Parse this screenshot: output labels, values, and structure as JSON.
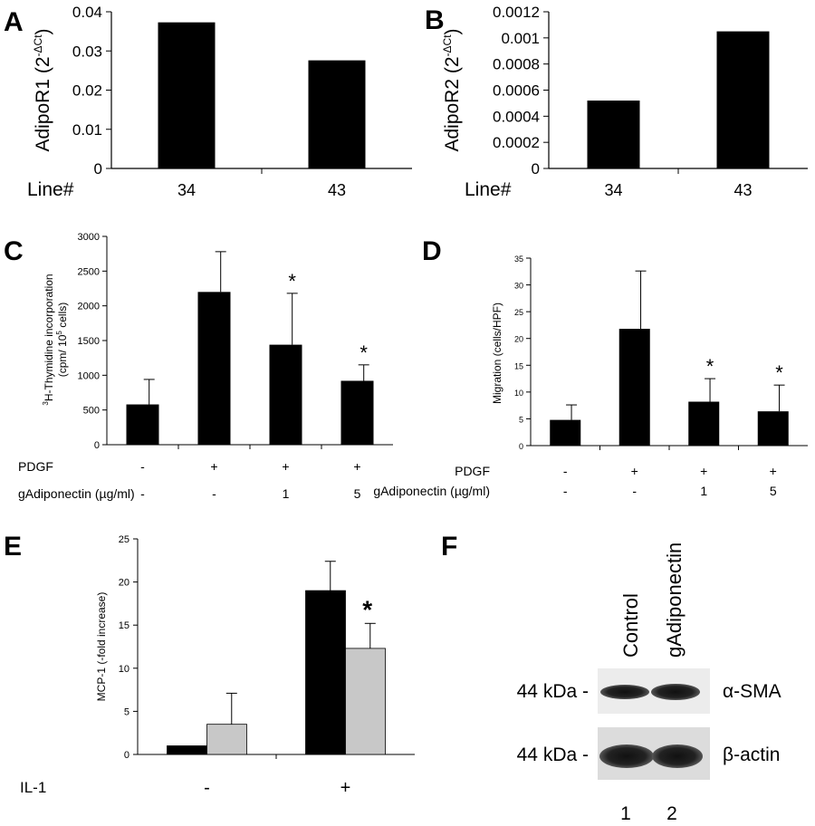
{
  "figure": {
    "panel_letters": [
      "A",
      "B",
      "C",
      "D",
      "E",
      "F"
    ]
  },
  "chart_data": [
    {
      "panel": "A",
      "type": "bar",
      "categories": [
        "34",
        "43"
      ],
      "values": [
        0.0373,
        0.0276
      ],
      "ylabel": "AdipoR1 (2",
      "ylabel_sup": "-ΔCt",
      "ylabel_close": ")",
      "xlabel": "Line#",
      "ylim": [
        0,
        0.04
      ],
      "yticks": [
        0,
        0.01,
        0.02,
        0.03,
        0.04
      ],
      "ytick_labels": [
        "0",
        "0.01",
        "0.02",
        "0.03",
        "0.04"
      ],
      "grid": false,
      "bar_color": "#000000"
    },
    {
      "panel": "B",
      "type": "bar",
      "categories": [
        "34",
        "43"
      ],
      "values": [
        0.00052,
        0.00105
      ],
      "ylabel": "AdipoR2 (2",
      "ylabel_sup": "-ΔCt",
      "ylabel_close": ")",
      "xlabel": "Line#",
      "ylim": [
        0,
        0.0012
      ],
      "yticks": [
        0,
        0.0002,
        0.0004,
        0.0006,
        0.0008,
        0.001,
        0.0012
      ],
      "ytick_labels": [
        "0",
        "0.0002",
        "0.0004",
        "0.0006",
        "0.0008",
        "0.001",
        "0.0012"
      ],
      "grid": false,
      "bar_color": "#000000"
    },
    {
      "panel": "C",
      "type": "bar",
      "values": [
        580,
        2200,
        1440,
        920
      ],
      "errors": [
        360,
        580,
        740,
        230
      ],
      "significance": [
        "",
        "",
        "*",
        "*"
      ],
      "ylabel_sup1": "3",
      "ylabel_line1": "H-Thymidine incorporation",
      "ylabel_line2a": "(cpm/ 10",
      "ylabel_sup2": "5",
      "ylabel_line2b": " cells)",
      "ylim": [
        0,
        3000
      ],
      "yticks": [
        0,
        500,
        1000,
        1500,
        2000,
        2500,
        3000
      ],
      "ytick_labels": [
        "0",
        "500",
        "1000",
        "1500",
        "2000",
        "2500",
        "3000"
      ],
      "condition_rows": [
        {
          "label": "PDGF",
          "values": [
            "-",
            "+",
            "+",
            "+"
          ]
        },
        {
          "label": "gAdiponectin (µg/ml)",
          "values": [
            "-",
            "-",
            "1",
            "5"
          ]
        }
      ],
      "grid": false,
      "bar_color": "#000000"
    },
    {
      "panel": "D",
      "type": "bar",
      "values": [
        4.8,
        21.8,
        8.2,
        6.4
      ],
      "errors": [
        2.8,
        10.8,
        4.3,
        4.9
      ],
      "significance": [
        "",
        "",
        "*",
        "*"
      ],
      "ylabel": "Migration (cells/HPF)",
      "ylim": [
        0,
        35
      ],
      "yticks": [
        0,
        5,
        10,
        15,
        20,
        25,
        30,
        35
      ],
      "ytick_labels": [
        "0",
        "5",
        "10",
        "15",
        "20",
        "25",
        "30",
        "35"
      ],
      "condition_rows": [
        {
          "label": "PDGF",
          "values": [
            "-",
            "+",
            "+",
            "+"
          ]
        },
        {
          "label": "gAdiponectin (µg/ml)",
          "values": [
            "-",
            "-",
            "1",
            "5"
          ]
        }
      ],
      "grid": false,
      "bar_color": "#000000"
    },
    {
      "panel": "E",
      "type": "bar",
      "groups": [
        "-",
        "+"
      ],
      "series": [
        {
          "color": "#000000",
          "values": [
            1.0,
            19.0
          ],
          "errors": [
            0.0,
            3.4
          ]
        },
        {
          "color": "#c8c8c8",
          "values": [
            3.5,
            12.3
          ],
          "errors": [
            3.6,
            2.9
          ]
        }
      ],
      "significance": [
        [
          "",
          ""
        ],
        [
          "",
          "*"
        ]
      ],
      "ylabel": "MCP-1  (-fold increase)",
      "ylim": [
        0,
        25
      ],
      "yticks": [
        0,
        5,
        10,
        15,
        20,
        25
      ],
      "ytick_labels": [
        "0",
        "5",
        "10",
        "15",
        "20",
        "25"
      ],
      "condition_row_label": "IL-1",
      "grid": false
    }
  ],
  "blot": {
    "panel": "F",
    "lane_headers": [
      "Control",
      "gAdiponectin"
    ],
    "rows": [
      {
        "mw": "44 kDa -",
        "protein": "α-SMA"
      },
      {
        "mw": "44 kDa -",
        "protein": "β-actin"
      }
    ],
    "lane_numbers": [
      "1",
      "2"
    ]
  }
}
